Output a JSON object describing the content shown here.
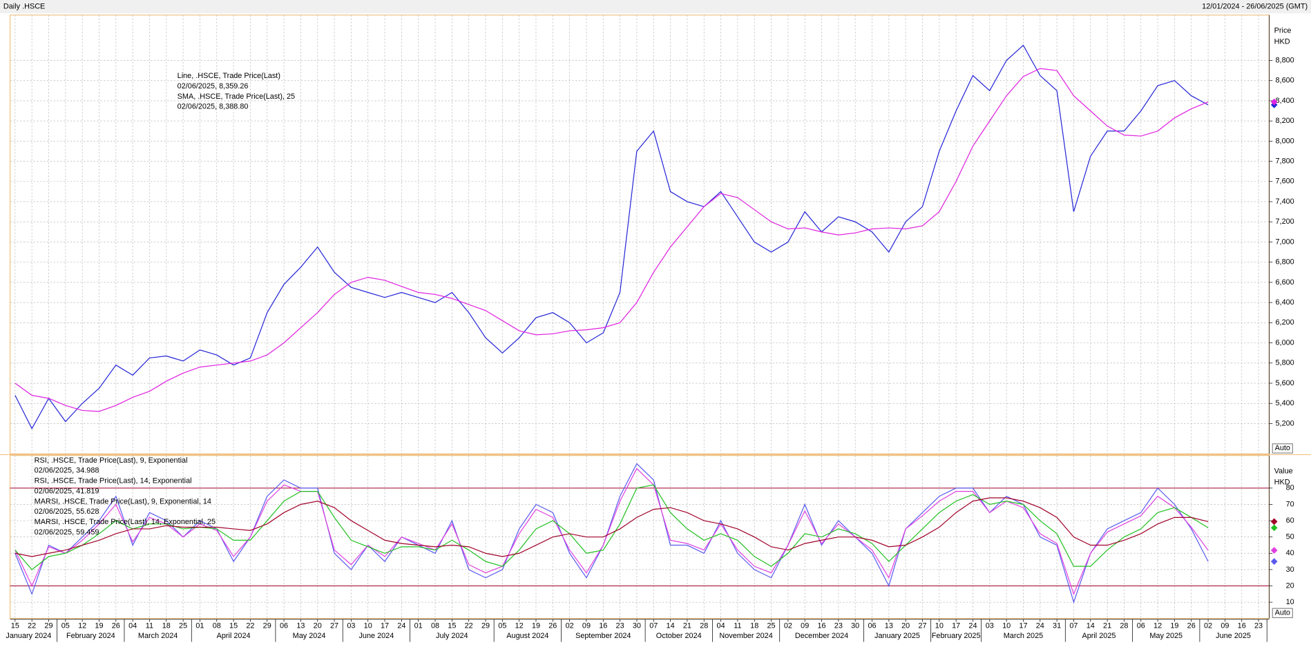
{
  "header": {
    "left": "Daily .HSCE",
    "right": "12/01/2024 - 26/06/2025 (GMT)"
  },
  "chart_data": {
    "type": "line",
    "categories": [
      "15",
      "22",
      "29",
      "05",
      "12",
      "19",
      "26",
      "04",
      "11",
      "18",
      "25",
      "01",
      "08",
      "15",
      "22",
      "29",
      "06",
      "13",
      "20",
      "27",
      "03",
      "10",
      "17",
      "24",
      "01",
      "08",
      "15",
      "22",
      "29",
      "05",
      "12",
      "19",
      "26",
      "02",
      "09",
      "16",
      "23",
      "30",
      "07",
      "14",
      "21",
      "28",
      "04",
      "11",
      "18",
      "25",
      "02",
      "09",
      "16",
      "23",
      "30",
      "06",
      "13",
      "20",
      "27",
      "10",
      "17",
      "24",
      "03",
      "10",
      "17",
      "24",
      "31",
      "07",
      "14",
      "21",
      "28",
      "06",
      "12",
      "19",
      "26",
      "02",
      "09",
      "16",
      "23"
    ],
    "months": [
      "January 2024",
      "February 2024",
      "March 2024",
      "April 2024",
      "May 2024",
      "June 2024",
      "July 2024",
      "August 2024",
      "September 2024",
      "October 2024",
      "November 2024",
      "December 2024",
      "January 2025",
      "February 2025",
      "March 2025",
      "April 2025",
      "May 2025",
      "June 2025"
    ],
    "panels": [
      {
        "axis_label": [
          "Price",
          "HKD"
        ],
        "button": "Auto",
        "ylim": [
          4900,
          9250
        ],
        "yticks": [
          {
            "value": 5200,
            "label": "5,200"
          },
          {
            "value": 5400,
            "label": "5,400"
          },
          {
            "value": 5600,
            "label": "5,600"
          },
          {
            "value": 5800,
            "label": "5,800"
          },
          {
            "value": 6000,
            "label": "6,000"
          },
          {
            "value": 6200,
            "label": "6,200"
          },
          {
            "value": 6400,
            "label": "6,400"
          },
          {
            "value": 6600,
            "label": "6,600"
          },
          {
            "value": 6800,
            "label": "6,800"
          },
          {
            "value": 7000,
            "label": "7,000"
          },
          {
            "value": 7200,
            "label": "7,200"
          },
          {
            "value": 7400,
            "label": "7,400"
          },
          {
            "value": 7600,
            "label": "7,600"
          },
          {
            "value": 7800,
            "label": "7,800"
          },
          {
            "value": 8000,
            "label": "8,000"
          },
          {
            "value": 8200,
            "label": "8,200"
          },
          {
            "value": 8400,
            "label": "8,400"
          },
          {
            "value": 8600,
            "label": "8,600"
          },
          {
            "value": 8800,
            "label": "8,800"
          }
        ],
        "series": [
          {
            "name": "Line, .HSCE, Trade Price(Last)",
            "legend_value": "02/06/2025, 8,359.26",
            "color": "#2424d8",
            "values": [
              5480,
              5150,
              5450,
              5220,
              5400,
              5550,
              5780,
              5680,
              5850,
              5870,
              5820,
              5930,
              5880,
              5780,
              5850,
              6300,
              6580,
              6750,
              6950,
              6700,
              6550,
              6500,
              6450,
              6500,
              6450,
              6400,
              6500,
              6300,
              6050,
              5900,
              6050,
              6250,
              6300,
              6200,
              6000,
              6100,
              6500,
              7900,
              8100,
              7500,
              7400,
              7350,
              7500,
              7250,
              7000,
              6900,
              7000,
              7300,
              7100,
              7250,
              7200,
              7100,
              6900,
              7200,
              7350,
              7900,
              8300,
              8650,
              8500,
              8800,
              8950,
              8650,
              8500,
              7300,
              7850,
              8100,
              8100,
              8300,
              8550,
              8600,
              8450,
              8359.26,
              null,
              null,
              null
            ]
          },
          {
            "name": "SMA, .HSCE, Trade Price(Last),  25",
            "legend_value": "02/06/2025, 8,388.80",
            "color": "#e020e0",
            "values": [
              5600,
              5480,
              5450,
              5380,
              5330,
              5320,
              5380,
              5460,
              5520,
              5620,
              5700,
              5760,
              5780,
              5800,
              5820,
              5880,
              6000,
              6150,
              6300,
              6480,
              6600,
              6650,
              6620,
              6560,
              6500,
              6480,
              6440,
              6380,
              6320,
              6220,
              6120,
              6080,
              6090,
              6120,
              6130,
              6150,
              6200,
              6400,
              6700,
              6950,
              7150,
              7350,
              7480,
              7440,
              7320,
              7200,
              7130,
              7140,
              7100,
              7070,
              7090,
              7130,
              7140,
              7130,
              7160,
              7300,
              7600,
              7950,
              8200,
              8450,
              8640,
              8720,
              8700,
              8450,
              8300,
              8150,
              8060,
              8050,
              8100,
              8230,
              8320,
              8388.8,
              null,
              null,
              null
            ]
          }
        ]
      },
      {
        "axis_label": [
          "Value",
          "HKD"
        ],
        "button": "Auto",
        "ylim": [
          0,
          100
        ],
        "yticks": [
          10,
          20,
          30,
          40,
          50,
          60,
          70,
          80
        ],
        "hlines": [
          80,
          20
        ],
        "series": [
          {
            "name": "RSI, .HSCE, Trade Price(Last),  9, Exponential",
            "legend_value": "02/06/2025, 34.988",
            "color": "#5a5af0",
            "values": [
              40,
              15,
              45,
              40,
              50,
              60,
              75,
              45,
              65,
              60,
              50,
              60,
              55,
              35,
              50,
              75,
              85,
              80,
              80,
              40,
              30,
              45,
              35,
              50,
              45,
              40,
              60,
              30,
              25,
              30,
              55,
              70,
              65,
              40,
              25,
              45,
              75,
              95,
              85,
              45,
              45,
              40,
              60,
              40,
              30,
              25,
              45,
              70,
              45,
              60,
              50,
              40,
              20,
              55,
              65,
              75,
              80,
              80,
              65,
              75,
              70,
              50,
              45,
              10,
              40,
              55,
              60,
              65,
              80,
              70,
              55,
              34.988,
              null,
              null,
              null
            ]
          },
          {
            "name": "RSI, .HSCE, Trade Price(Last),  14, Exponential",
            "legend_value": "02/06/2025, 41.819",
            "color": "#e040e0",
            "values": [
              42,
              20,
              44,
              40,
              48,
              58,
              70,
              47,
              62,
              58,
              50,
              58,
              54,
              38,
              50,
              72,
              82,
              78,
              78,
              42,
              33,
              45,
              38,
              50,
              46,
              42,
              58,
              33,
              28,
              32,
              52,
              67,
              62,
              42,
              28,
              45,
              72,
              92,
              82,
              48,
              46,
              42,
              58,
              42,
              32,
              28,
              45,
              66,
              46,
              58,
              50,
              42,
              25,
              55,
              63,
              72,
              78,
              78,
              65,
              72,
              68,
              52,
              46,
              15,
              40,
              53,
              58,
              63,
              75,
              68,
              56,
              41.819,
              null,
              null,
              null
            ]
          },
          {
            "name": "MARSI, .HSCE, Trade Price(Last),  9, Exponential, 14",
            "legend_value": "02/06/2025, 55.628",
            "color": "#22c022",
            "values": [
              42,
              30,
              38,
              40,
              45,
              52,
              60,
              55,
              58,
              58,
              55,
              56,
              55,
              48,
              48,
              60,
              72,
              78,
              78,
              62,
              48,
              44,
              40,
              44,
              44,
              42,
              48,
              42,
              35,
              32,
              42,
              55,
              60,
              52,
              40,
              42,
              58,
              80,
              82,
              65,
              55,
              48,
              52,
              48,
              38,
              32,
              40,
              52,
              50,
              55,
              52,
              46,
              35,
              45,
              55,
              65,
              72,
              76,
              70,
              72,
              70,
              60,
              52,
              32,
              32,
              42,
              50,
              55,
              65,
              68,
              62,
              55.628,
              null,
              null,
              null
            ]
          },
          {
            "name": "MARSI, .HSCE, Trade Price(Last),  14, Exponential, 25",
            "legend_value": "02/06/2025, 59.459",
            "color": "#a00028",
            "values": [
              40,
              38,
              40,
              42,
              45,
              48,
              52,
              55,
              55,
              57,
              56,
              56,
              56,
              55,
              54,
              58,
              65,
              70,
              72,
              68,
              60,
              54,
              48,
              46,
              45,
              44,
              45,
              44,
              40,
              38,
              40,
              45,
              50,
              52,
              50,
              50,
              55,
              62,
              67,
              68,
              65,
              60,
              58,
              55,
              50,
              44,
              42,
              46,
              48,
              50,
              50,
              48,
              44,
              45,
              50,
              56,
              65,
              72,
              74,
              74,
              72,
              68,
              62,
              50,
              45,
              45,
              48,
              52,
              58,
              62,
              62,
              59.459,
              null,
              null,
              null
            ]
          }
        ]
      }
    ]
  }
}
